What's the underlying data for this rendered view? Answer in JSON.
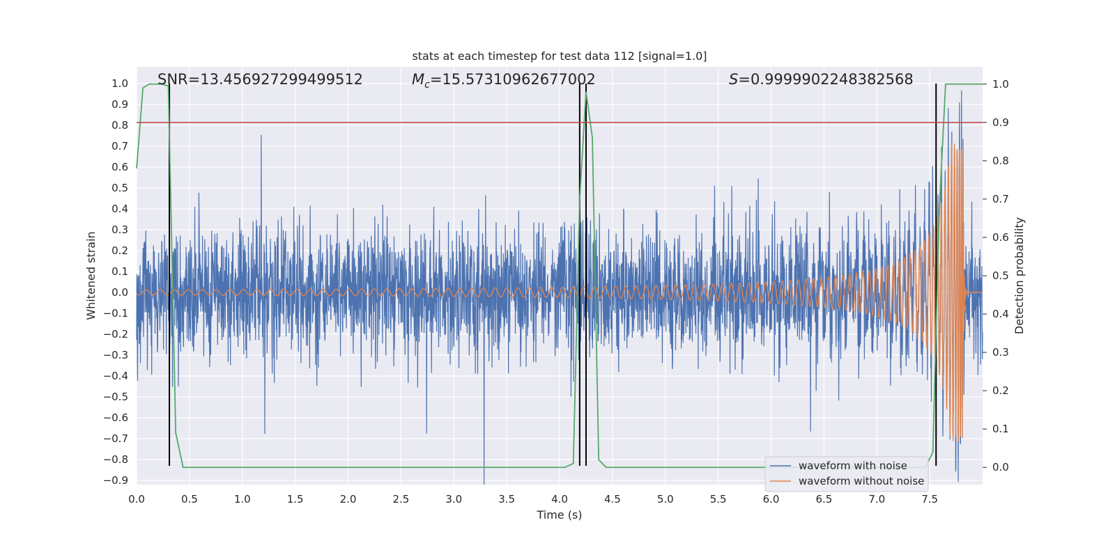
{
  "chart_data": {
    "type": "line",
    "title": "stats at each timestep for test data 112 [signal=1.0]",
    "xlabel": "Time (s)",
    "ylabel": "Whitened strain",
    "y2label": "Detection probability",
    "xlim": [
      0.0,
      8.0
    ],
    "ylim": [
      -0.92,
      1.08
    ],
    "y2lim": [
      -0.045,
      1.045
    ],
    "x_ticks": [
      "0.0",
      "0.5",
      "1.0",
      "1.5",
      "2.0",
      "2.5",
      "3.0",
      "3.5",
      "4.0",
      "4.5",
      "5.0",
      "5.5",
      "6.0",
      "6.5",
      "7.0",
      "7.5"
    ],
    "y_ticks": [
      "1.0",
      "0.9",
      "0.8",
      "0.7",
      "0.6",
      "0.5",
      "0.4",
      "0.3",
      "0.2",
      "0.1",
      "0.0",
      "−0.1",
      "−0.2",
      "−0.3",
      "−0.4",
      "−0.5",
      "−0.6",
      "−0.7",
      "−0.8",
      "−0.9"
    ],
    "y2_ticks": [
      "1.0",
      "0.9",
      "0.8",
      "0.7",
      "0.6",
      "0.5",
      "0.4",
      "0.3",
      "0.2",
      "0.1",
      "0.0"
    ],
    "grid": true,
    "legend_position": "lower-right",
    "colors": {
      "noise": "#4c72b0",
      "clean": "#dd8452",
      "probability": "#55a868",
      "threshold": "#c44e52",
      "markers": "#000000",
      "background": "#eaeaf2"
    },
    "annotations": {
      "snr_label": "SNR=13.456927299499512",
      "mc_symbol": "M",
      "mc_sub": "c",
      "mc_value": "=15.57310962677002",
      "s_symbol": "S",
      "s_value": "=0.9999902248382568"
    },
    "series": [
      {
        "name": "waveform with noise",
        "description_values": {
          "typical_amplitude": 0.3,
          "max_peak": 1.0,
          "min_peak": -0.83
        }
      },
      {
        "name": "waveform without noise",
        "description_values": {
          "start_amplitude": 0.012,
          "peak_time": 7.82,
          "peak_value": 0.72,
          "min_value": -0.58
        }
      }
    ],
    "probability_curve": {
      "x": [
        0.0,
        0.06,
        0.12,
        0.18,
        0.24,
        0.3,
        0.37,
        0.44,
        0.52,
        4.05,
        4.13,
        4.19,
        4.25,
        4.31,
        4.37,
        4.44,
        4.52,
        7.46,
        7.53,
        7.59,
        7.65,
        7.73,
        7.8,
        7.86,
        7.93,
        8.0
      ],
      "y": [
        0.78,
        0.99,
        1.0,
        1.0,
        1.0,
        0.995,
        0.09,
        0.0,
        0.0,
        0.0,
        0.01,
        0.7,
        0.98,
        0.86,
        0.02,
        0.0,
        0.0,
        0.0,
        0.04,
        0.67,
        1.0,
        1.0,
        1.0,
        1.0,
        1.0,
        1.0
      ]
    },
    "threshold_y2": 0.9,
    "vertical_markers_x": [
      0.31,
      4.19,
      4.25,
      7.56
    ],
    "marker_y_range": [
      -0.83,
      1.0
    ]
  }
}
